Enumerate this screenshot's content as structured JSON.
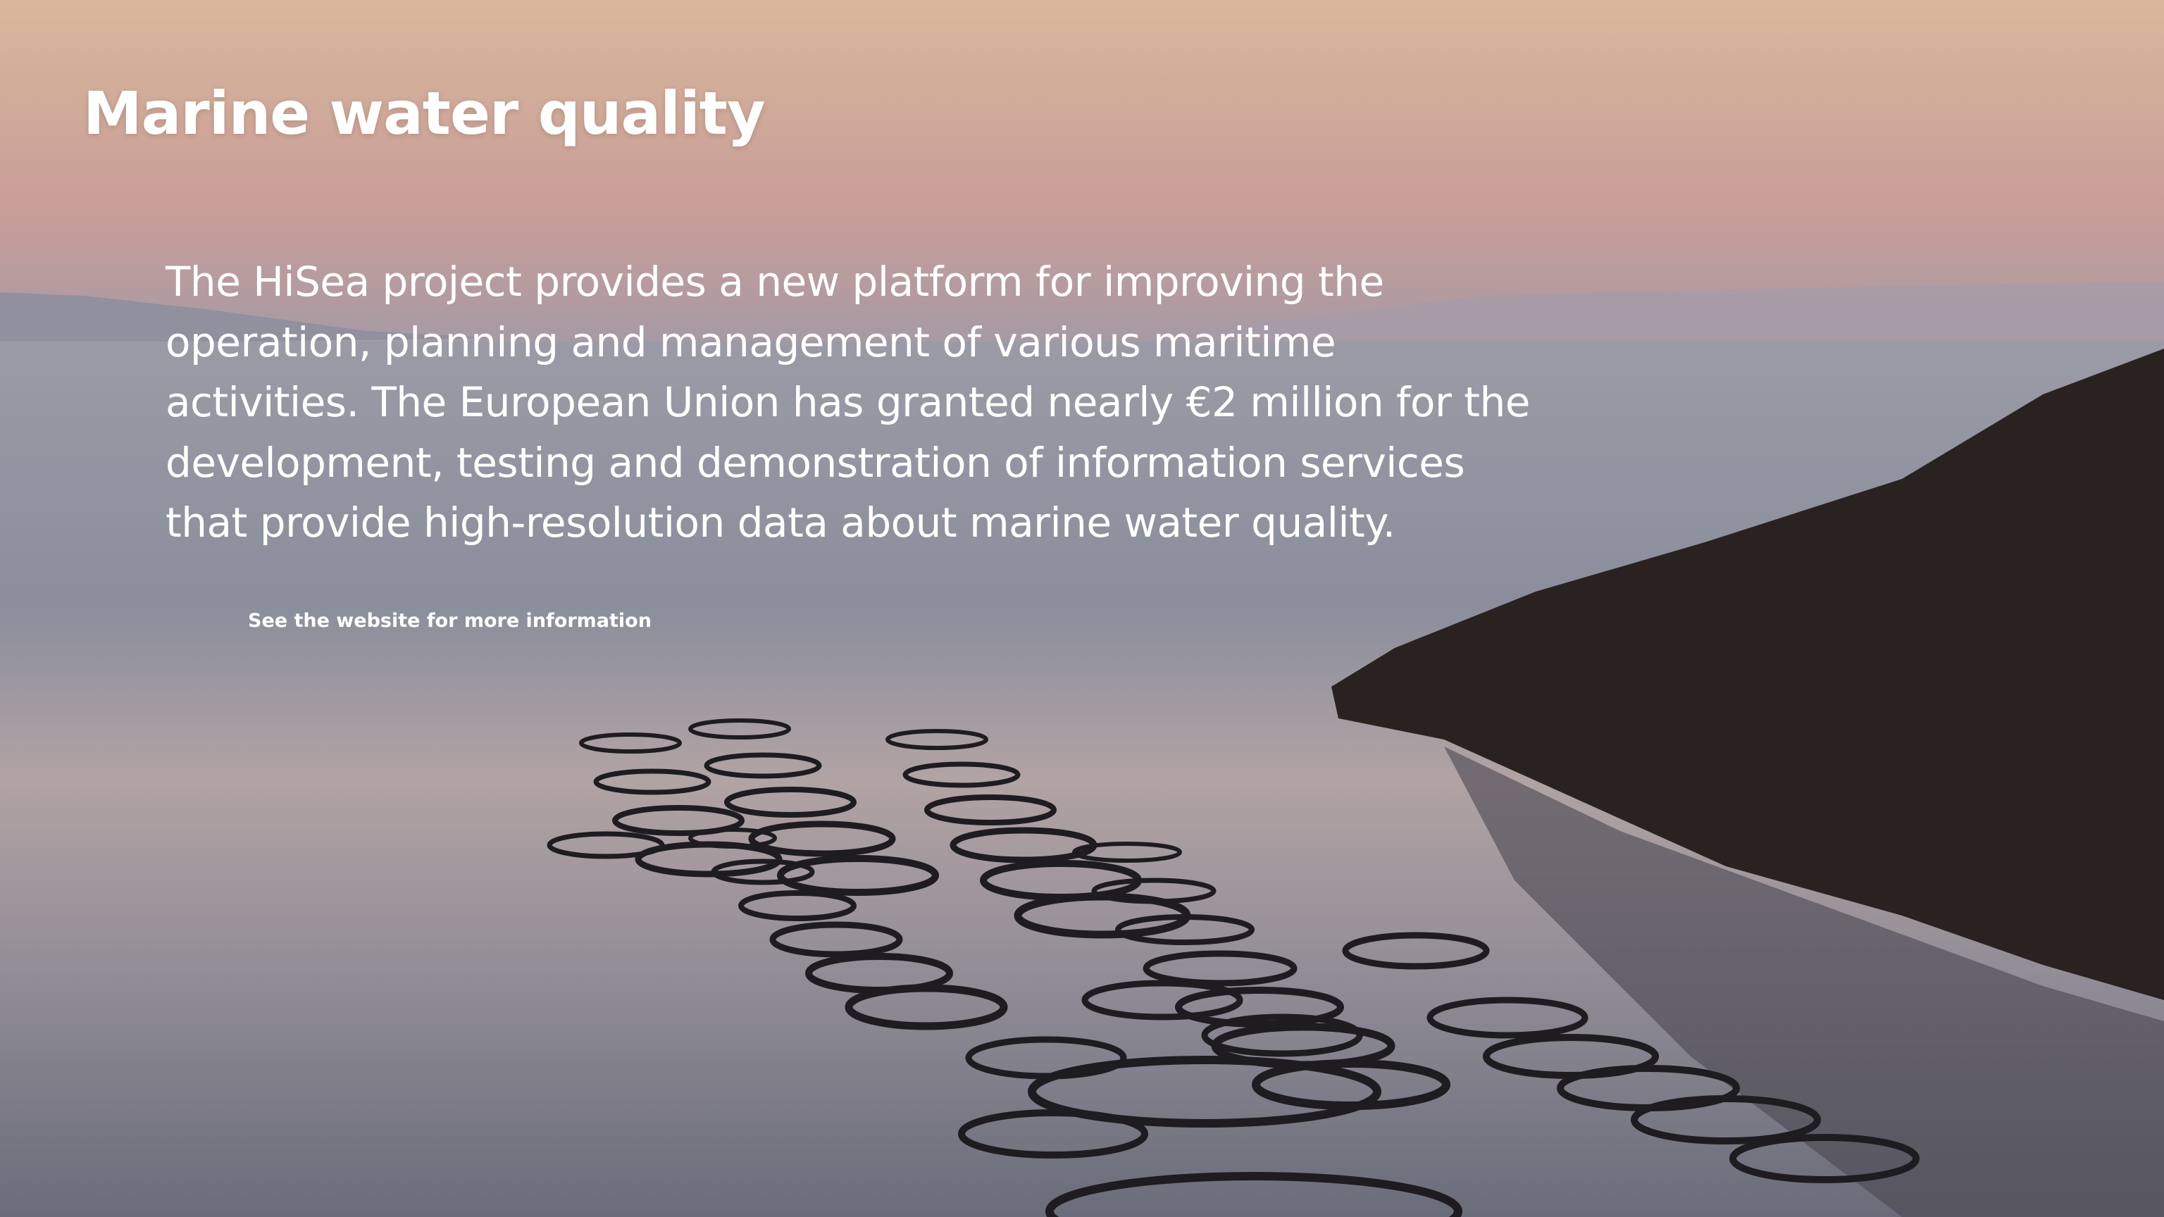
{
  "page": {
    "title": "Marine water quality",
    "body_lines": [
      "The HiSea project provides a new platform for improving the",
      "operation, planning and management of various maritime",
      "activities. The European Union has granted nearly €2 million for the",
      "development, testing and demonstration of information services",
      "that provide high-resolution data about marine water quality."
    ],
    "link": "See the website for more information"
  }
}
